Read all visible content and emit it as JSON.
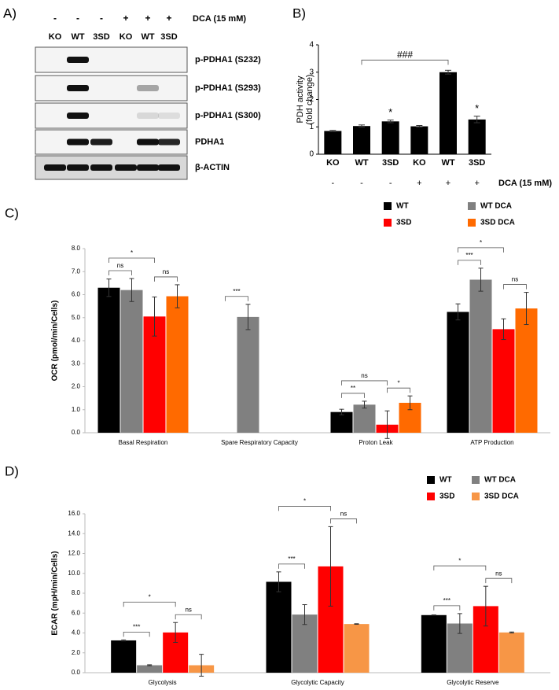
{
  "panel_a": {
    "label": "A)",
    "treatment": "DCA (15 mM)",
    "signs": [
      "-",
      "-",
      "-",
      "+",
      "+",
      "+"
    ],
    "lanes": [
      "KO",
      "WT",
      "3SD",
      "KO",
      "WT",
      "3SD"
    ],
    "blots": [
      "p-PDHA1 (S232)",
      "p-PDHA1 (S293)",
      "p-PDHA1 (S300)",
      "PDHA1",
      "β-ACTIN"
    ]
  },
  "chart_data": [
    {
      "type": "bar",
      "label": "B)",
      "ylabel": [
        "PDH activity",
        "(fold change)"
      ],
      "categories": [
        "KO",
        "WT",
        "3SD",
        "KO",
        "WT",
        "3SD"
      ],
      "values": [
        0.85,
        1.03,
        1.2,
        1.02,
        3.0,
        1.27
      ],
      "errors": [
        0.02,
        0.04,
        0.05,
        0.03,
        0.07,
        0.12
      ],
      "color": "#000000",
      "ylim": [
        0,
        4
      ],
      "yticks": [
        0,
        1,
        2,
        3,
        4
      ],
      "markers": [
        {
          "index": 2,
          "label": "*"
        },
        {
          "index": 5,
          "label": "*"
        }
      ],
      "brackets": [
        {
          "from": 1,
          "to": 4,
          "label": "###"
        }
      ],
      "treatment": "DCA (15 mM)",
      "signs": [
        "-",
        "-",
        "-",
        "+",
        "+",
        "+"
      ]
    },
    {
      "type": "bar",
      "label": "C)",
      "ylabel": "OCR (pmol/min/Cells)",
      "categories": [
        "Basal Respiration",
        "Spare Respiratory Capacity",
        "Proton Leak",
        "ATP Production"
      ],
      "series": [
        {
          "name": "WT",
          "color": "#000000",
          "values": [
            6.3,
            null,
            0.9,
            5.25
          ],
          "errors": [
            0.38,
            null,
            0.12,
            0.35
          ]
        },
        {
          "name": "WT DCA",
          "color": "#808080",
          "values": [
            6.2,
            5.03,
            1.22,
            6.65
          ],
          "errors": [
            0.5,
            0.55,
            0.15,
            0.5
          ]
        },
        {
          "name": "3SD",
          "color": "#ff0000",
          "values": [
            5.05,
            null,
            0.35,
            4.5
          ],
          "errors": [
            0.85,
            null,
            0.6,
            0.45
          ]
        },
        {
          "name": "3SD DCA",
          "color": "#ff6a00",
          "values": [
            5.93,
            null,
            1.3,
            5.4
          ],
          "errors": [
            0.5,
            null,
            0.3,
            0.7
          ]
        }
      ],
      "ylim": [
        0,
        8
      ],
      "yticks": [
        {
          "value": 0,
          "label": "0.0"
        },
        {
          "value": 1,
          "label": "1.0"
        },
        {
          "value": 2,
          "label": "2.0"
        },
        {
          "value": 3,
          "label": "3.0"
        },
        {
          "value": 4,
          "label": "4.0"
        },
        {
          "value": 5,
          "label": "5.0"
        },
        {
          "value": 6,
          "label": "6.0"
        },
        {
          "value": 7,
          "label": "7.0"
        },
        {
          "value": 8,
          "label": "8.0"
        }
      ],
      "brackets": [
        {
          "group": 0,
          "from": 0,
          "to": 2,
          "label": "*"
        },
        {
          "group": 0,
          "from": 0,
          "to": 1,
          "label": "ns"
        },
        {
          "group": 0,
          "from": 2,
          "to": 3,
          "label": "ns"
        },
        {
          "group": 1,
          "from": 0,
          "to": 1,
          "label": "***"
        },
        {
          "group": 2,
          "from": 0,
          "to": 2,
          "label": "ns"
        },
        {
          "group": 2,
          "from": 0,
          "to": 1,
          "label": "**"
        },
        {
          "group": 2,
          "from": 2,
          "to": 3,
          "label": "*"
        },
        {
          "group": 3,
          "from": 0,
          "to": 2,
          "label": "*"
        },
        {
          "group": 3,
          "from": 0,
          "to": 1,
          "label": "***"
        },
        {
          "group": 3,
          "from": 2,
          "to": 3,
          "label": "ns"
        }
      ]
    },
    {
      "type": "bar",
      "label": "D)",
      "ylabel": "ECAR (mpH/min/Cells)",
      "categories": [
        "Glycolysis",
        "Glycolytic Capacity",
        "Glycolytic Reserve"
      ],
      "series": [
        {
          "name": "WT",
          "color": "#000000",
          "values": [
            3.25,
            9.15,
            5.8
          ],
          "errors": [
            0.05,
            1.0,
            0.02
          ]
        },
        {
          "name": "WT DCA",
          "color": "#808080",
          "values": [
            0.75,
            5.85,
            4.95
          ],
          "errors": [
            0.05,
            1.0,
            1.0
          ]
        },
        {
          "name": "3SD",
          "color": "#ff0000",
          "values": [
            4.05,
            10.7,
            6.7
          ],
          "errors": [
            1.0,
            4.0,
            2.0
          ]
        },
        {
          "name": "3SD DCA",
          "color": "#f79646",
          "values": [
            0.75,
            4.9,
            4.05
          ],
          "errors": [
            1.1,
            0.03,
            0.05
          ]
        }
      ],
      "ylim": [
        0,
        16
      ],
      "yticks": [
        {
          "value": 0,
          "label": "0.0"
        },
        {
          "value": 2,
          "label": "2.0"
        },
        {
          "value": 4,
          "label": "4.0"
        },
        {
          "value": 6,
          "label": "6.0"
        },
        {
          "value": 8,
          "label": "8.0"
        },
        {
          "value": 10,
          "label": "10.0"
        },
        {
          "value": 12,
          "label": "12.0"
        },
        {
          "value": 14,
          "label": "14.0"
        },
        {
          "value": 16,
          "label": "16.0"
        }
      ],
      "brackets": [
        {
          "group": 0,
          "from": 0,
          "to": 2,
          "label": "*"
        },
        {
          "group": 0,
          "from": 0,
          "to": 1,
          "label": "***"
        },
        {
          "group": 0,
          "from": 2,
          "to": 3,
          "label": "ns"
        },
        {
          "group": 1,
          "from": 0,
          "to": 2,
          "label": "*"
        },
        {
          "group": 1,
          "from": 0,
          "to": 1,
          "label": "***"
        },
        {
          "group": 1,
          "from": 2,
          "to": 3,
          "label": "ns"
        },
        {
          "group": 2,
          "from": 0,
          "to": 2,
          "label": "*"
        },
        {
          "group": 2,
          "from": 0,
          "to": 1,
          "label": "***"
        },
        {
          "group": 2,
          "from": 2,
          "to": 3,
          "label": "ns"
        }
      ]
    }
  ]
}
